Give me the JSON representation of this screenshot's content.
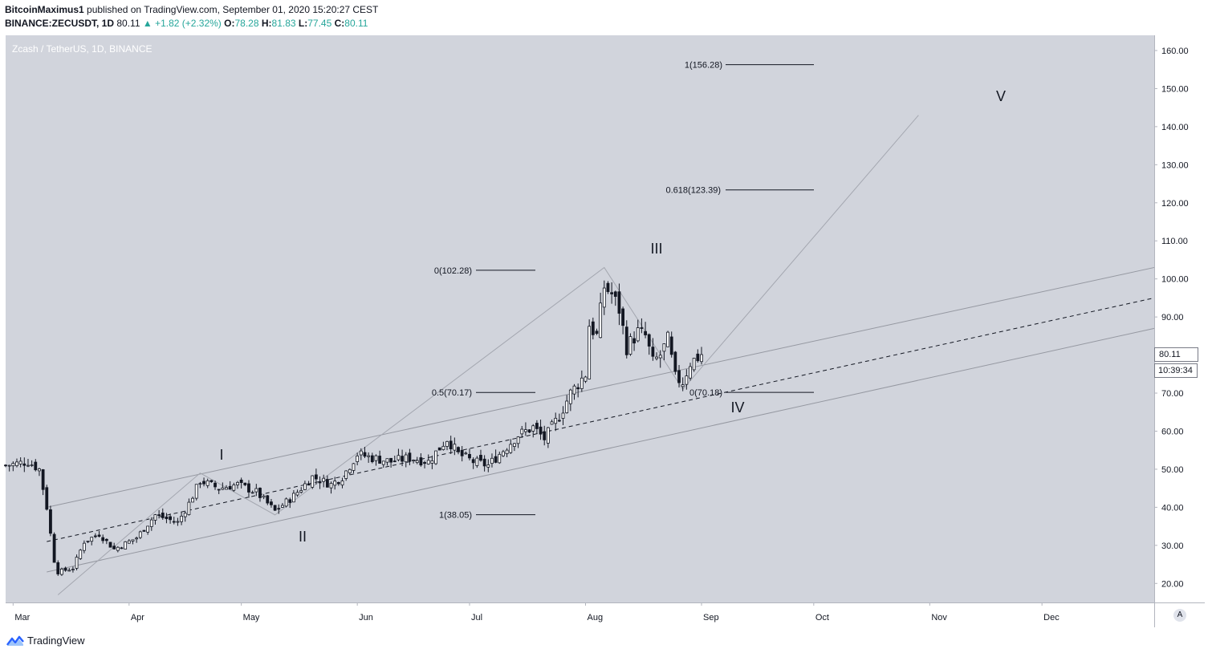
{
  "header": {
    "author": "BitcoinMaximus1",
    "published_text": " published on TradingView.com, September 01, 2020 15:20:27 CEST",
    "symbol": "BINANCE:ZECUSDT, 1D",
    "last": "80.11",
    "change_arrow": "▲",
    "change": "+1.82 (+2.32%)",
    "o_label": "O:",
    "o_value": "78.28",
    "h_label": "H:",
    "h_value": "81.83",
    "l_label": "L:",
    "l_value": "77.45",
    "c_label": "C:",
    "c_value": "80.11"
  },
  "pane_title": "Zcash / TetherUS, 1D, BINANCE",
  "price_badge": "80.11",
  "countdown": "10:39:34",
  "auto_button": "A",
  "footer": {
    "brand": "TradingView",
    "logo_icon": "tradingview-logo-icon"
  },
  "colors": {
    "up": "#26a69a",
    "plot_bg": "#d1d4dc",
    "candle_up": "#ffffff",
    "candle_down": "#131722",
    "channel": "#9598a1"
  },
  "chart_data": {
    "type": "candlestick",
    "symbol": "Zcash / TetherUS",
    "interval": "1D",
    "exchange": "BINANCE",
    "y_range": [
      15,
      164
    ],
    "y_ticks": [
      20,
      30,
      40,
      50,
      60,
      70,
      80,
      90,
      100,
      110,
      120,
      130,
      140,
      150,
      160
    ],
    "y_tick_labels": [
      "20.00",
      "30.00",
      "40.00",
      "50.00",
      "60.00",
      "70.00",
      "80.00",
      "90.00",
      "100.00",
      "110.00",
      "120.00",
      "130.00",
      "140.00",
      "150.00",
      "160.00"
    ],
    "x_range": [
      "2020-02-28",
      "2020-12-31"
    ],
    "x_ticks": [
      {
        "label": "Mar",
        "date": "2020-03-01"
      },
      {
        "label": "Apr",
        "date": "2020-04-01"
      },
      {
        "label": "May",
        "date": "2020-05-01"
      },
      {
        "label": "Jun",
        "date": "2020-06-01"
      },
      {
        "label": "Jul",
        "date": "2020-07-01"
      },
      {
        "label": "Aug",
        "date": "2020-08-01"
      },
      {
        "label": "Sep",
        "date": "2020-09-01"
      },
      {
        "label": "Oct",
        "date": "2020-10-01"
      },
      {
        "label": "Nov",
        "date": "2020-11-01"
      },
      {
        "label": "Dec",
        "date": "2020-12-01"
      }
    ],
    "close_path": [
      [
        "2020-02-28",
        51
      ],
      [
        "2020-03-05",
        52
      ],
      [
        "2020-03-08",
        50
      ],
      [
        "2020-03-10",
        40
      ],
      [
        "2020-03-12",
        26
      ],
      [
        "2020-03-13",
        23
      ],
      [
        "2020-03-17",
        24
      ],
      [
        "2020-03-20",
        31
      ],
      [
        "2020-03-24",
        33
      ],
      [
        "2020-03-28",
        29
      ],
      [
        "2020-04-03",
        32
      ],
      [
        "2020-04-08",
        38
      ],
      [
        "2020-04-14",
        36
      ],
      [
        "2020-04-17",
        41
      ],
      [
        "2020-04-20",
        47
      ],
      [
        "2020-04-25",
        45
      ],
      [
        "2020-04-30",
        46
      ],
      [
        "2020-05-05",
        44
      ],
      [
        "2020-05-10",
        39
      ],
      [
        "2020-05-15",
        43
      ],
      [
        "2020-05-20",
        48
      ],
      [
        "2020-05-25",
        46
      ],
      [
        "2020-05-28",
        48
      ],
      [
        "2020-06-01",
        54
      ],
      [
        "2020-06-05",
        53
      ],
      [
        "2020-06-10",
        52
      ],
      [
        "2020-06-15",
        53
      ],
      [
        "2020-06-20",
        52
      ],
      [
        "2020-06-25",
        58
      ],
      [
        "2020-06-28",
        54
      ],
      [
        "2020-07-02",
        52
      ],
      [
        "2020-07-06",
        51
      ],
      [
        "2020-07-10",
        55
      ],
      [
        "2020-07-14",
        59
      ],
      [
        "2020-07-18",
        61
      ],
      [
        "2020-07-21",
        58
      ],
      [
        "2020-07-25",
        64
      ],
      [
        "2020-07-28",
        70
      ],
      [
        "2020-08-01",
        75
      ],
      [
        "2020-08-02",
        88
      ],
      [
        "2020-08-04",
        85
      ],
      [
        "2020-08-06",
        98
      ],
      [
        "2020-08-08",
        96
      ],
      [
        "2020-08-10",
        92
      ],
      [
        "2020-08-12",
        82
      ],
      [
        "2020-08-15",
        86
      ],
      [
        "2020-08-17",
        85
      ],
      [
        "2020-08-19",
        78
      ],
      [
        "2020-08-21",
        80
      ],
      [
        "2020-08-23",
        84
      ],
      [
        "2020-08-25",
        74
      ],
      [
        "2020-08-27",
        73
      ],
      [
        "2020-08-29",
        78
      ],
      [
        "2020-09-01",
        80.11
      ]
    ],
    "fib_levels": [
      {
        "label": "1(156.28)",
        "value": 156.28
      },
      {
        "label": "0.618(123.39)",
        "value": 123.39
      },
      {
        "label": "0(102.28)",
        "value": 102.28
      },
      {
        "label": "0.5(70.17)",
        "value": 70.17
      },
      {
        "label": "0(70.18)",
        "value": 70.18
      },
      {
        "label": "1(38.05)",
        "value": 38.05
      }
    ],
    "wave_labels": [
      "I",
      "II",
      "III",
      "IV",
      "V"
    ],
    "wave_path": [
      [
        "2020-03-13",
        17
      ],
      [
        "2020-04-20",
        49
      ],
      [
        "2020-05-10",
        38
      ],
      [
        "2020-08-06",
        103
      ],
      [
        "2020-08-27",
        71
      ],
      [
        "2020-10-29",
        143
      ]
    ],
    "channel": {
      "upper": [
        [
          "2020-03-10",
          40
        ],
        [
          "2020-12-31",
          103
        ]
      ],
      "middle": [
        [
          "2020-03-10",
          31
        ],
        [
          "2020-12-31",
          95
        ]
      ],
      "lower": [
        [
          "2020-03-10",
          23
        ],
        [
          "2020-12-31",
          87
        ]
      ]
    },
    "last_price": 80.11
  }
}
